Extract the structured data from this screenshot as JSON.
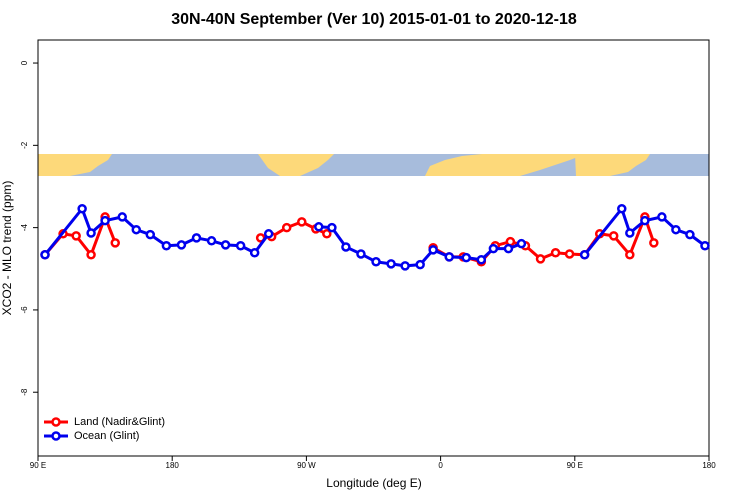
{
  "chart_data": {
    "type": "line",
    "title": "30N-40N September (Ver 10)   2015-01-01 to 2020-12-18",
    "x_label": "Longitude (deg E)",
    "y_label": "XCO2 - MLO trend (ppm)",
    "xlim": [
      90,
      540
    ],
    "xticks": [
      {
        "value": 90,
        "label": "90 E"
      },
      {
        "value": 180,
        "label": "180"
      },
      {
        "value": 270,
        "label": "90 W"
      },
      {
        "value": 360,
        "label": "0"
      },
      {
        "value": 450,
        "label": "90 E"
      },
      {
        "value": 540,
        "label": "180"
      }
    ],
    "ylim": [
      -9.55,
      0.56
    ],
    "yticks": [
      0,
      -2,
      -4,
      -6,
      -8
    ],
    "legend": "bottom-left",
    "series": [
      {
        "name": "Land (Nadir&Glint)",
        "color": "#ff0000",
        "x": [
          94.7,
          106.8,
          115.6,
          125.6,
          135,
          141.8,
          null,
          239.3,
          246.7,
          256.8,
          266.9,
          276.3,
          283.7,
          null,
          355,
          365.8,
          375.2,
          387.3,
          396.7,
          406.8,
          416.9,
          427,
          437.1,
          446.5,
          456.6,
          466.7,
          476.1,
          486.9,
          497,
          503
        ],
        "values": [
          -4.66,
          -4.15,
          -4.2,
          -4.66,
          -3.74,
          -4.37,
          null,
          -4.25,
          -4.22,
          -4.0,
          -3.86,
          -4.03,
          -4.15,
          null,
          -4.49,
          -4.71,
          -4.71,
          -4.83,
          -4.44,
          -4.34,
          -4.44,
          -4.76,
          -4.61,
          -4.64,
          -4.66,
          -4.15,
          -4.2,
          -4.66,
          -3.74,
          -4.37
        ]
      },
      {
        "name": "Ocean (Glint)",
        "color": "#0000ee",
        "x": [
          94.7,
          119.6,
          125.6,
          135,
          146.5,
          155.9,
          165.3,
          176.1,
          186.2,
          196.3,
          206.4,
          215.8,
          225.9,
          235.3,
          244.7,
          null,
          278.3,
          287.1,
          296.5,
          306.6,
          316.7,
          326.8,
          336.2,
          346.3,
          355,
          365.8,
          377.2,
          387.3,
          395.4,
          405.5,
          414.2,
          null,
          456.6,
          481.5,
          486.9,
          497,
          508.4,
          517.8,
          527.2,
          537.3
        ],
        "values": [
          -4.66,
          -3.54,
          -4.13,
          -3.83,
          -3.74,
          -4.05,
          -4.17,
          -4.44,
          -4.42,
          -4.25,
          -4.32,
          -4.42,
          -4.44,
          -4.61,
          -4.15,
          null,
          -3.98,
          -4.0,
          -4.47,
          -4.64,
          -4.83,
          -4.88,
          -4.93,
          -4.9,
          -4.54,
          -4.71,
          -4.73,
          -4.78,
          -4.51,
          -4.51,
          -4.39,
          null,
          -4.66,
          -3.54,
          -4.13,
          -3.83,
          -3.74,
          -4.05,
          -4.17,
          -4.44
        ]
      }
    ]
  }
}
